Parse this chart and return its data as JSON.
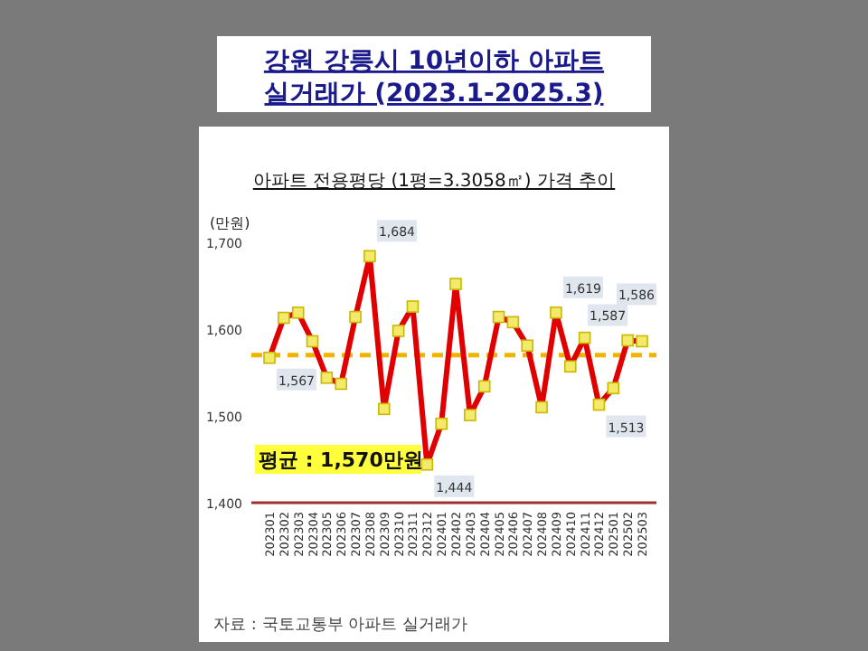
{
  "chart_data": {
    "type": "line",
    "title": "강원 강릉시 10년이하 아파트 실거래가 (2023.1-2025.3)",
    "subtitle": "아파트 전용평당 (1평=3.3058㎡) 가격 추이",
    "ylabel": "(만원)",
    "categories": [
      "202301",
      "202302",
      "202303",
      "202304",
      "202305",
      "202306",
      "202307",
      "202308",
      "202309",
      "202310",
      "202311",
      "202312",
      "202401",
      "202402",
      "202403",
      "202404",
      "202405",
      "202406",
      "202407",
      "202408",
      "202409",
      "202410",
      "202411",
      "202412",
      "202501",
      "202502",
      "202503"
    ],
    "series": [
      {
        "color": "#e00000",
        "values": [
          1567,
          1613,
          1619,
          1586,
          1544,
          1537,
          1614,
          1684,
          1508,
          1598,
          1626,
          1444,
          1491,
          1652,
          1501,
          1534,
          1614,
          1608,
          1581,
          1510,
          1619,
          1557,
          1590,
          1513,
          1532,
          1587,
          1586
        ],
        "value_labels": [
          "1,567",
          null,
          null,
          null,
          null,
          null,
          null,
          "1,684",
          null,
          null,
          null,
          "1,444",
          null,
          null,
          null,
          null,
          null,
          null,
          null,
          null,
          "1,619",
          null,
          null,
          "1,513",
          null,
          "1,587",
          "1,586"
        ]
      }
    ],
    "marker": "square",
    "ylim": [
      1400,
      1700
    ],
    "yticks": [
      {
        "value": 1400,
        "label": "1,400"
      },
      {
        "value": 1500,
        "label": "1,500"
      },
      {
        "value": 1600,
        "label": "1,600"
      },
      {
        "value": 1700,
        "label": "1,700"
      }
    ],
    "ref_lines": [
      {
        "axis": "y",
        "value": 1570,
        "color": "#f0b400",
        "line_style": "dashed"
      }
    ],
    "annotations": [
      "평균 : 1,570만원",
      "자료 : 국토교통부 아파트 실거래가"
    ],
    "grid": false
  }
}
